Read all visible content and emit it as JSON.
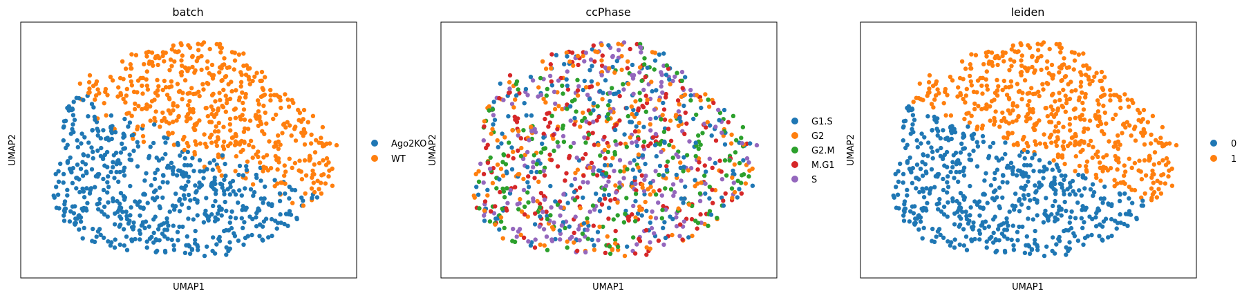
{
  "chart_data": [
    {
      "type": "scatter",
      "title": "batch",
      "xlabel": "UMAP1",
      "ylabel": "UMAP2",
      "ticks": "none",
      "grid": false,
      "legend_placement": "right",
      "colors": {
        "Ago2KO": "#1f77b4",
        "WT": "#ff7f0e"
      },
      "legend": [
        "Ago2KO",
        "WT"
      ],
      "mode": "batch"
    },
    {
      "type": "scatter",
      "title": "ccPhase",
      "xlabel": "UMAP1",
      "ylabel": "UMAP2",
      "ticks": "none",
      "grid": false,
      "legend_placement": "right",
      "colors": {
        "G1.S": "#1f77b4",
        "G2": "#ff7f0e",
        "G2.M": "#2ca02c",
        "M.G1": "#d62728",
        "S": "#9467bd"
      },
      "legend": [
        "G1.S",
        "G2",
        "G2.M",
        "M.G1",
        "S"
      ],
      "mode": "phase"
    },
    {
      "type": "scatter",
      "title": "leiden",
      "xlabel": "UMAP1",
      "ylabel": "UMAP2",
      "ticks": "none",
      "grid": false,
      "legend_placement": "right",
      "colors": {
        "0": "#1f77b4",
        "1": "#ff7f0e"
      },
      "legend": [
        "0",
        "1"
      ],
      "mode": "leiden"
    }
  ]
}
